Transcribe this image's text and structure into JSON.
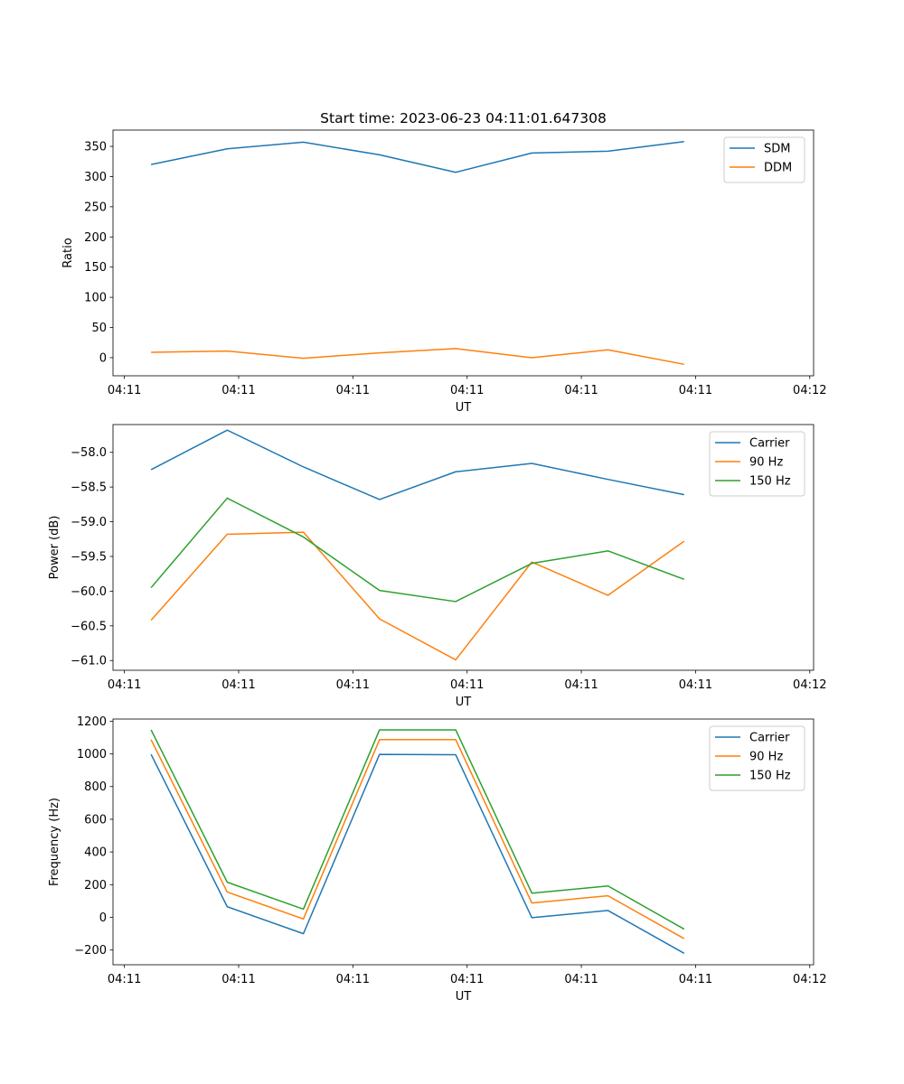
{
  "figure": {
    "title": "Start time: 2023-06-23 04:11:01.647308"
  },
  "colors": {
    "blue": "#1f77b4",
    "orange": "#ff7f0e",
    "green": "#2ca02c"
  },
  "chart_data": [
    {
      "type": "line",
      "title": "Start time: 2023-06-23 04:11:01.647308",
      "xlabel": "UT",
      "ylabel": "Ratio",
      "x": [
        1,
        2,
        3,
        4,
        5,
        6,
        7,
        8
      ],
      "xlim": [
        0.5,
        9.7
      ],
      "xticks": [
        0.65,
        2.15,
        3.65,
        5.15,
        6.65,
        8.15,
        9.65
      ],
      "xtick_labels": [
        "04:11",
        "04:11",
        "04:11",
        "04:11",
        "04:11",
        "04:11",
        "04:12"
      ],
      "ylim": [
        -30,
        377
      ],
      "yticks": [
        0,
        50,
        100,
        150,
        200,
        250,
        300,
        350
      ],
      "ytick_labels": [
        "0",
        "50",
        "100",
        "150",
        "200",
        "250",
        "300",
        "350"
      ],
      "legend": "top-right",
      "series": [
        {
          "name": "SDM",
          "color": "#1f77b4",
          "values": [
            320,
            346,
            357,
            336,
            307,
            339,
            342,
            358
          ]
        },
        {
          "name": "DDM",
          "color": "#ff7f0e",
          "values": [
            9,
            11,
            -1,
            8,
            15,
            0,
            13,
            -11
          ]
        }
      ]
    },
    {
      "type": "line",
      "title": "",
      "xlabel": "UT",
      "ylabel": "Power (dB)",
      "x": [
        1,
        2,
        3,
        4,
        5,
        6,
        7,
        8
      ],
      "xlim": [
        0.5,
        9.7
      ],
      "xticks": [
        0.65,
        2.15,
        3.65,
        5.15,
        6.65,
        8.15,
        9.65
      ],
      "xtick_labels": [
        "04:11",
        "04:11",
        "04:11",
        "04:11",
        "04:11",
        "04:11",
        "04:12"
      ],
      "ylim": [
        -61.14,
        -57.6
      ],
      "yticks": [
        -61.0,
        -60.5,
        -60.0,
        -59.5,
        -59.0,
        -58.5,
        -58.0
      ],
      "ytick_labels": [
        "−61.0",
        "−60.5",
        "−60.0",
        "−59.5",
        "−59.0",
        "−58.5",
        "−58.0"
      ],
      "legend": "top-right",
      "series": [
        {
          "name": "Carrier",
          "color": "#1f77b4",
          "values": [
            -58.25,
            -57.68,
            -58.21,
            -58.68,
            -58.28,
            -58.16,
            -58.39,
            -58.61
          ]
        },
        {
          "name": "90 Hz",
          "color": "#ff7f0e",
          "values": [
            -60.42,
            -59.18,
            -59.15,
            -60.4,
            -60.99,
            -59.58,
            -60.06,
            -59.28
          ]
        },
        {
          "name": "150 Hz",
          "color": "#2ca02c",
          "values": [
            -59.95,
            -58.66,
            -59.22,
            -59.99,
            -60.15,
            -59.6,
            -59.42,
            -59.83
          ]
        }
      ]
    },
    {
      "type": "line",
      "title": "",
      "xlabel": "UT",
      "ylabel": "Frequency (Hz)",
      "x": [
        1,
        2,
        3,
        4,
        5,
        6,
        7,
        8
      ],
      "xlim": [
        0.5,
        9.7
      ],
      "xticks": [
        0.65,
        2.15,
        3.65,
        5.15,
        6.65,
        8.15,
        9.65
      ],
      "xtick_labels": [
        "04:11",
        "04:11",
        "04:11",
        "04:11",
        "04:11",
        "04:11",
        "04:12"
      ],
      "ylim": [
        -290,
        1213
      ],
      "yticks": [
        -200,
        0,
        200,
        400,
        600,
        800,
        1000,
        1200
      ],
      "ytick_labels": [
        "−200",
        "0",
        "200",
        "400",
        "600",
        "800",
        "1000",
        "1200"
      ],
      "legend": "top-right",
      "series": [
        {
          "name": "Carrier",
          "color": "#1f77b4",
          "values": [
            997,
            65,
            -100,
            997,
            995,
            -2,
            42,
            -220
          ]
        },
        {
          "name": "90 Hz",
          "color": "#ff7f0e",
          "values": [
            1087,
            155,
            -10,
            1087,
            1087,
            88,
            132,
            -130
          ]
        },
        {
          "name": "150 Hz",
          "color": "#2ca02c",
          "values": [
            1147,
            215,
            50,
            1147,
            1147,
            148,
            192,
            -72
          ]
        }
      ]
    }
  ]
}
